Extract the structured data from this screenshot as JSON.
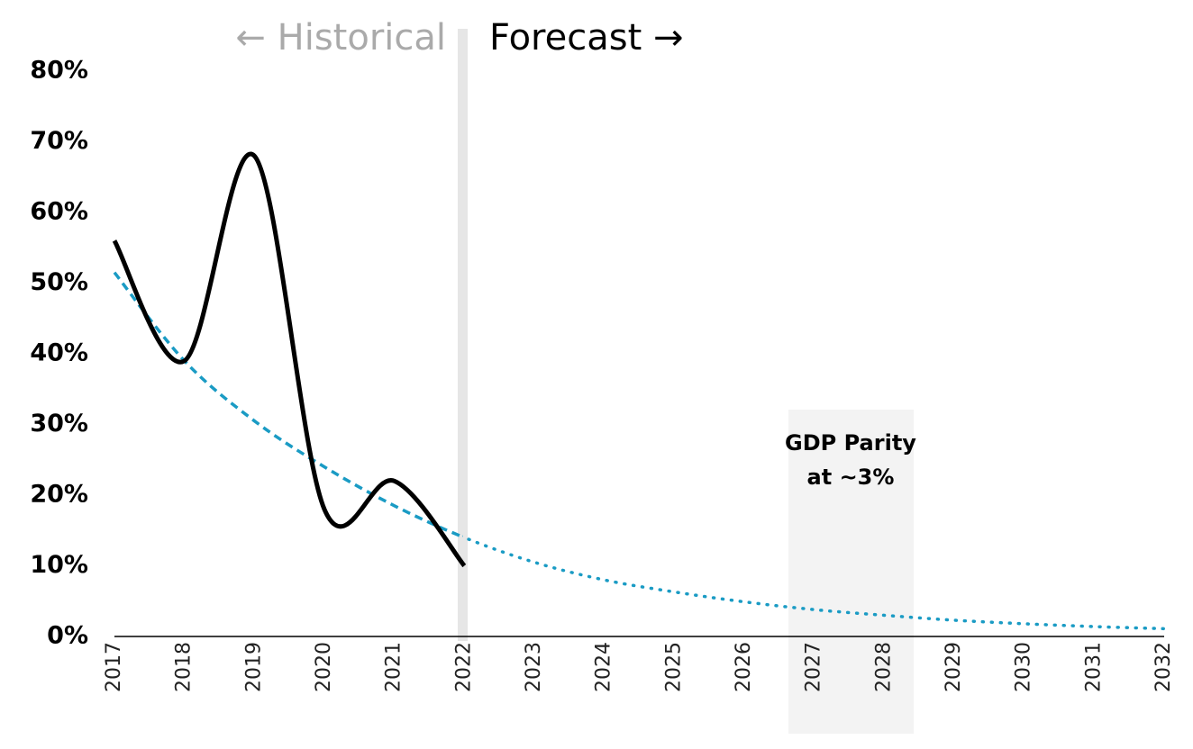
{
  "chart_data": {
    "type": "line",
    "categories": [
      "2017",
      "2018",
      "2019",
      "2020",
      "2021",
      "2022",
      "2023",
      "2024",
      "2025",
      "2026",
      "2027",
      "2028",
      "2029",
      "2030",
      "2031",
      "2032"
    ],
    "series": [
      {
        "color": "#000000",
        "values": [
          56,
          39,
          68,
          18,
          22,
          10,
          null,
          null,
          null,
          null,
          null,
          null,
          null,
          null,
          null,
          null
        ]
      },
      {
        "color": "#1a9bc4",
        "values": [
          51.5,
          39,
          30.5,
          24,
          18.5,
          14,
          10.5,
          8,
          6.3,
          4.9,
          3.8,
          3,
          2.3,
          1.8,
          1.4,
          1.1
        ]
      }
    ],
    "ylim": [
      0,
      80
    ],
    "yticks": [
      {
        "value": 0,
        "label": "0%"
      },
      {
        "value": 10,
        "label": "10%"
      },
      {
        "value": 20,
        "label": "20%"
      },
      {
        "value": 30,
        "label": "30%"
      },
      {
        "value": 40,
        "label": "40%"
      },
      {
        "value": 50,
        "label": "50%"
      },
      {
        "value": 60,
        "label": "60%"
      },
      {
        "value": 70,
        "label": "70%"
      },
      {
        "value": 80,
        "label": "80%"
      }
    ],
    "annotations": {
      "historical": "← Historical",
      "forecast": "Forecast →",
      "parity": [
        "GDP Parity",
        "at ~3%"
      ]
    }
  }
}
